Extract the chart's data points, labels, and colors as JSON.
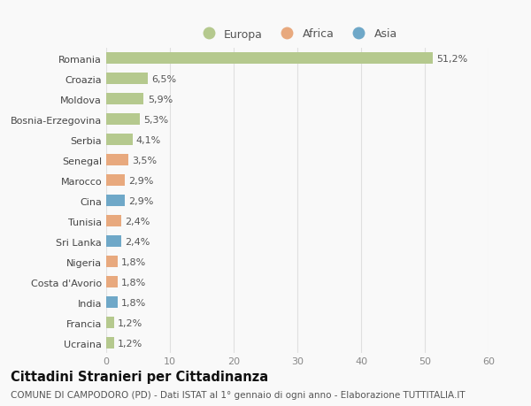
{
  "countries": [
    "Romania",
    "Croazia",
    "Moldova",
    "Bosnia-Erzegovina",
    "Serbia",
    "Senegal",
    "Marocco",
    "Cina",
    "Tunisia",
    "Sri Lanka",
    "Nigeria",
    "Costa d'Avorio",
    "India",
    "Francia",
    "Ucraina"
  ],
  "values": [
    51.2,
    6.5,
    5.9,
    5.3,
    4.1,
    3.5,
    2.9,
    2.9,
    2.4,
    2.4,
    1.8,
    1.8,
    1.8,
    1.2,
    1.2
  ],
  "labels": [
    "51,2%",
    "6,5%",
    "5,9%",
    "5,3%",
    "4,1%",
    "3,5%",
    "2,9%",
    "2,9%",
    "2,4%",
    "2,4%",
    "1,8%",
    "1,8%",
    "1,8%",
    "1,2%",
    "1,2%"
  ],
  "continents": [
    "Europa",
    "Europa",
    "Europa",
    "Europa",
    "Europa",
    "Africa",
    "Africa",
    "Asia",
    "Africa",
    "Asia",
    "Africa",
    "Africa",
    "Asia",
    "Europa",
    "Europa"
  ],
  "colors": {
    "Europa": "#b5c98e",
    "Africa": "#e8a97e",
    "Asia": "#6fa8c8"
  },
  "xlim": [
    0,
    60
  ],
  "xticks": [
    0,
    10,
    20,
    30,
    40,
    50,
    60
  ],
  "title": "Cittadini Stranieri per Cittadinanza",
  "subtitle": "COMUNE DI CAMPODORO (PD) - Dati ISTAT al 1° gennaio di ogni anno - Elaborazione TUTTITALIA.IT",
  "background_color": "#f9f9f9",
  "grid_color": "#e0e0e0",
  "bar_height": 0.55,
  "label_fontsize": 8,
  "tick_fontsize": 8,
  "title_fontsize": 10.5,
  "subtitle_fontsize": 7.5,
  "legend_fontsize": 9
}
